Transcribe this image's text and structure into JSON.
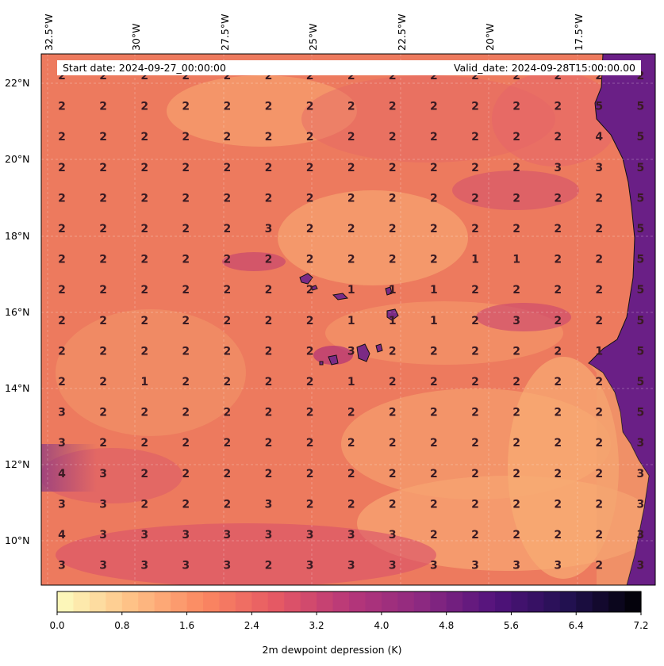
{
  "header": {
    "start_date": "Start date: 2024-09-27_00:00:00",
    "valid_date": "Valid_date: 2024-09-28T15:00:00.00"
  },
  "axes": {
    "lon_labels": [
      "32.5°W",
      "30°W",
      "27.5°W",
      "25°W",
      "22.5°W",
      "20°W",
      "17.5°W"
    ],
    "lat_labels": [
      "22°N",
      "20°N",
      "18°N",
      "16°N",
      "14°N",
      "12°N",
      "10°N"
    ]
  },
  "colorbar": {
    "ticks": [
      "0.0",
      "0.8",
      "1.6",
      "2.4",
      "3.2",
      "4.0",
      "4.8",
      "5.6",
      "6.4",
      "7.2"
    ],
    "label": "2m dewpoint depression (K)",
    "range": [
      0,
      7.2
    ],
    "colormap": "magma_r",
    "colors": [
      "#fcfdbf",
      "#fec287",
      "#fb8861",
      "#e55964",
      "#b73779",
      "#8c2981",
      "#51127c",
      "#221150",
      "#000004"
    ]
  },
  "grid_values": [
    [
      "2",
      "2",
      "2",
      "2",
      "2",
      "2",
      "2",
      "2",
      "2",
      "2",
      "2",
      "2",
      "2",
      "2",
      "2"
    ],
    [
      "2",
      "2",
      "2",
      "2",
      "2",
      "2",
      "2",
      "2",
      "2",
      "2",
      "2",
      "2",
      "2",
      "5",
      "5"
    ],
    [
      "2",
      "2",
      "2",
      "2",
      "2",
      "2",
      "2",
      "2",
      "2",
      "2",
      "2",
      "2",
      "2",
      "4",
      "5"
    ],
    [
      "2",
      "2",
      "2",
      "2",
      "2",
      "2",
      "2",
      "2",
      "2",
      "2",
      "2",
      "2",
      "3",
      "3",
      "5"
    ],
    [
      "2",
      "2",
      "2",
      "2",
      "2",
      "2",
      "2",
      "2",
      "2",
      "2",
      "2",
      "2",
      "2",
      "2",
      "5"
    ],
    [
      "2",
      "2",
      "2",
      "2",
      "2",
      "3",
      "2",
      "2",
      "2",
      "2",
      "2",
      "2",
      "2",
      "2",
      "5"
    ],
    [
      "2",
      "2",
      "2",
      "2",
      "2",
      "2",
      "2",
      "2",
      "2",
      "2",
      "1",
      "1",
      "2",
      "2",
      "5"
    ],
    [
      "2",
      "2",
      "2",
      "2",
      "2",
      "2",
      "2",
      "1",
      "1",
      "1",
      "2",
      "2",
      "2",
      "2",
      "5"
    ],
    [
      "2",
      "2",
      "2",
      "2",
      "2",
      "2",
      "2",
      "1",
      "1",
      "1",
      "2",
      "3",
      "2",
      "2",
      "5"
    ],
    [
      "2",
      "2",
      "2",
      "2",
      "2",
      "2",
      "2",
      "3",
      "2",
      "2",
      "2",
      "2",
      "2",
      "1",
      "5"
    ],
    [
      "2",
      "2",
      "1",
      "2",
      "2",
      "2",
      "2",
      "1",
      "2",
      "2",
      "2",
      "2",
      "2",
      "2",
      "5"
    ],
    [
      "3",
      "2",
      "2",
      "2",
      "2",
      "2",
      "2",
      "2",
      "2",
      "2",
      "2",
      "2",
      "2",
      "2",
      "5"
    ],
    [
      "3",
      "2",
      "2",
      "2",
      "2",
      "2",
      "2",
      "2",
      "2",
      "2",
      "2",
      "2",
      "2",
      "2",
      "3"
    ],
    [
      "4",
      "3",
      "2",
      "2",
      "2",
      "2",
      "2",
      "2",
      "2",
      "2",
      "2",
      "2",
      "2",
      "2",
      "3"
    ],
    [
      "3",
      "3",
      "2",
      "2",
      "2",
      "3",
      "2",
      "2",
      "2",
      "2",
      "2",
      "2",
      "2",
      "2",
      "3"
    ],
    [
      "4",
      "3",
      "3",
      "3",
      "3",
      "3",
      "3",
      "3",
      "3",
      "2",
      "2",
      "2",
      "2",
      "2",
      "3"
    ],
    [
      "3",
      "3",
      "3",
      "3",
      "3",
      "2",
      "3",
      "3",
      "3",
      "3",
      "3",
      "3",
      "3",
      "2",
      "3"
    ]
  ]
}
